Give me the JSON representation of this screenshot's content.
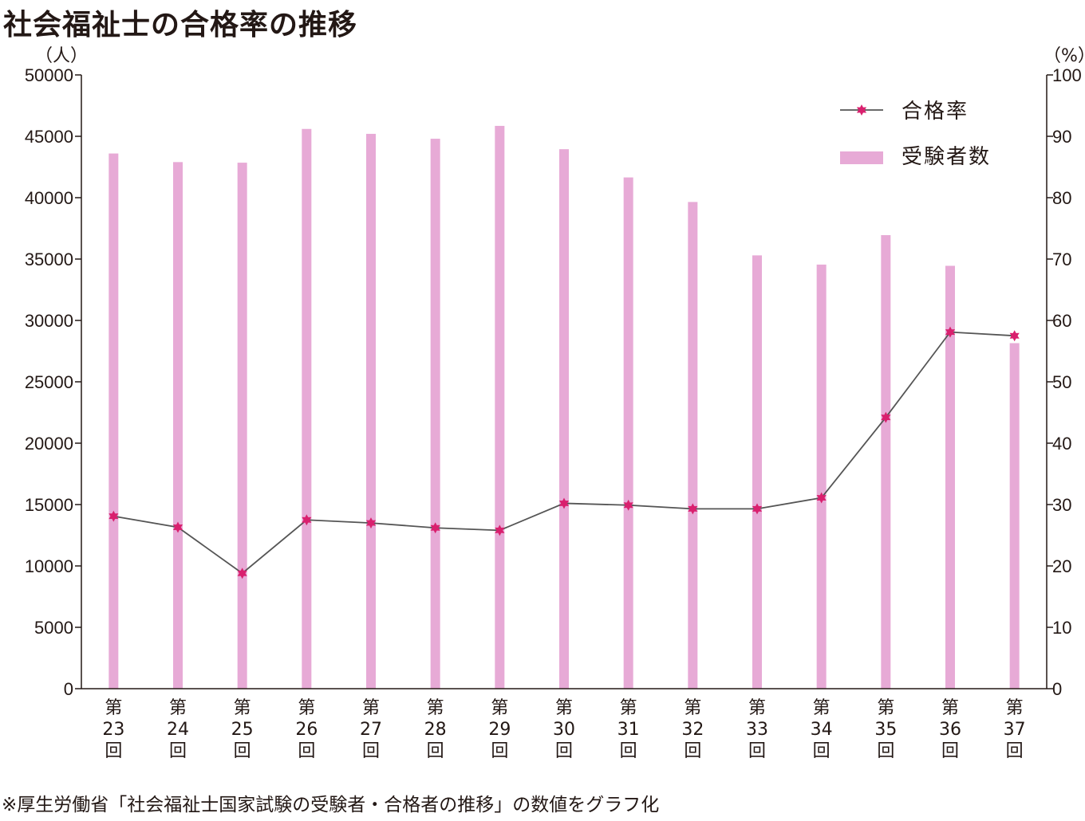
{
  "chart_data": {
    "type": "bar",
    "title": "社会福祉士の合格率の推移",
    "left_axis_unit": "（人）",
    "right_axis_unit": "（%）",
    "ylim_left": [
      0,
      50000
    ],
    "ylim_right": [
      0,
      100
    ],
    "left_ticks": [
      "0",
      "5000",
      "10000",
      "15000",
      "20000",
      "25000",
      "30000",
      "35000",
      "40000",
      "45000",
      "50000"
    ],
    "right_ticks": [
      "0",
      "10",
      "20",
      "30",
      "40",
      "50",
      "60",
      "70",
      "80",
      "90",
      "100"
    ],
    "categories": [
      {
        "line1": "第",
        "line2": "23",
        "line3": "回"
      },
      {
        "line1": "第",
        "line2": "24",
        "line3": "回"
      },
      {
        "line1": "第",
        "line2": "25",
        "line3": "回"
      },
      {
        "line1": "第",
        "line2": "26",
        "line3": "回"
      },
      {
        "line1": "第",
        "line2": "27",
        "line3": "回"
      },
      {
        "line1": "第",
        "line2": "28",
        "line3": "回"
      },
      {
        "line1": "第",
        "line2": "29",
        "line3": "回"
      },
      {
        "line1": "第",
        "line2": "30",
        "line3": "回"
      },
      {
        "line1": "第",
        "line2": "31",
        "line3": "回"
      },
      {
        "line1": "第",
        "line2": "32",
        "line3": "回"
      },
      {
        "line1": "第",
        "line2": "33",
        "line3": "回"
      },
      {
        "line1": "第",
        "line2": "34",
        "line3": "回"
      },
      {
        "line1": "第",
        "line2": "35",
        "line3": "回"
      },
      {
        "line1": "第",
        "line2": "36",
        "line3": "回"
      },
      {
        "line1": "第",
        "line2": "37",
        "line3": "回"
      }
    ],
    "series": [
      {
        "name": "受験者数",
        "type": "bar",
        "axis": "left",
        "color": "#e7aad6",
        "values": [
          43600,
          42900,
          42850,
          45600,
          45200,
          44800,
          45850,
          43950,
          41650,
          39650,
          35300,
          34550,
          36950,
          34450,
          28150
        ]
      },
      {
        "name": "合格率",
        "type": "line",
        "axis": "right",
        "color": "#d9206e",
        "line_color": "#555555",
        "values": [
          28.1,
          26.3,
          18.8,
          27.5,
          27.0,
          26.2,
          25.8,
          30.2,
          29.9,
          29.3,
          29.3,
          31.1,
          44.2,
          58.1,
          57.5
        ]
      }
    ],
    "legend_position": "top-right",
    "grid": false
  },
  "note": "※厚生労働省「社会福祉士国家試験の受験者・合格者の推移」の数値をグラフ化"
}
